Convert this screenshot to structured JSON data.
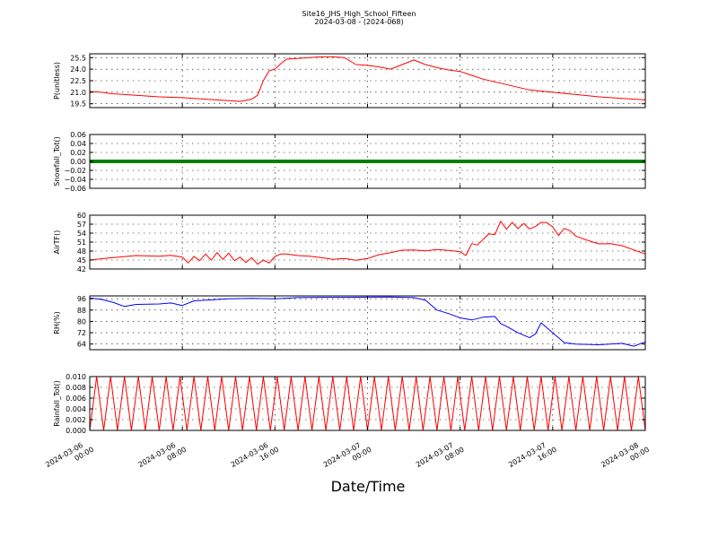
{
  "figure": {
    "title": "Site16_JHS_High_School_Fifteen",
    "subtitle": "2024-03-08 - (2024-068)",
    "xlabel": "Date/Time"
  },
  "chart_data": [
    {
      "type": "line",
      "ylabel": "P(unitless)",
      "yticks": [
        "19.5",
        "21.0",
        "22.5",
        "24.0",
        "25.5"
      ],
      "ylim": [
        19.0,
        26.0
      ],
      "grid": true,
      "colors": {
        "series": "#ff0000"
      },
      "x_hours": [
        0,
        1,
        2,
        4,
        6,
        8,
        10,
        12,
        13,
        14,
        14.5,
        15,
        15.5,
        16,
        16.5,
        17,
        18,
        19,
        20,
        21,
        22,
        23,
        24,
        25,
        26,
        27,
        28,
        29,
        30,
        31,
        32,
        33,
        34,
        36,
        38,
        40,
        42,
        44,
        46,
        48
      ],
      "series": [
        {
          "values": [
            21.1,
            21.0,
            20.8,
            20.6,
            20.4,
            20.3,
            20.1,
            19.9,
            19.8,
            20.1,
            20.6,
            22.5,
            23.8,
            24.0,
            24.7,
            25.3,
            25.4,
            25.5,
            25.6,
            25.6,
            25.5,
            24.6,
            24.5,
            24.3,
            24.0,
            24.6,
            25.2,
            24.6,
            24.2,
            23.9,
            23.7,
            23.2,
            22.7,
            22.0,
            21.3,
            21.0,
            20.7,
            20.4,
            20.2,
            20.0
          ]
        }
      ]
    },
    {
      "type": "line",
      "ylabel": "Snowfall_Tot()",
      "yticks": [
        "−0.06",
        "−0.04",
        "−0.02",
        "0.00",
        "0.02",
        "0.04",
        "0.06"
      ],
      "ylim": [
        -0.06,
        0.06
      ],
      "grid": true,
      "colors": {
        "series": "#008000"
      },
      "x_hours": [
        0,
        48
      ],
      "series": [
        {
          "values": [
            0.0,
            0.0
          ]
        }
      ]
    },
    {
      "type": "line",
      "ylabel": "AirTF()",
      "yticks": [
        "42",
        "45",
        "48",
        "51",
        "54",
        "57",
        "60"
      ],
      "ylim": [
        42,
        60
      ],
      "grid": true,
      "colors": {
        "series": "#ff0000"
      },
      "x_hours": [
        0,
        2,
        4,
        6,
        7,
        8,
        8.5,
        9,
        9.5,
        10,
        10.5,
        11,
        11.5,
        12,
        12.5,
        13,
        13.5,
        14,
        14.5,
        15,
        15.5,
        16,
        16.5,
        17,
        18,
        19,
        20,
        21,
        22,
        23,
        24,
        25,
        26,
        27,
        28,
        29,
        30,
        31,
        32,
        32.5,
        33,
        33.5,
        34,
        34.5,
        35,
        35.5,
        36,
        36.5,
        37,
        37.5,
        38,
        38.5,
        39,
        39.5,
        40,
        40.5,
        41,
        41.5,
        42,
        43,
        44,
        45,
        46,
        47,
        48
      ],
      "series": [
        {
          "values": [
            45.0,
            45.8,
            46.5,
            46.3,
            46.6,
            46.0,
            44.0,
            46.2,
            44.8,
            47.0,
            45.0,
            47.5,
            45.2,
            47.3,
            44.8,
            46.0,
            44.2,
            45.8,
            43.6,
            45.0,
            44.0,
            46.2,
            47.0,
            47.0,
            46.5,
            46.3,
            45.8,
            45.2,
            45.5,
            44.9,
            45.5,
            46.8,
            47.5,
            48.3,
            48.4,
            48.1,
            48.5,
            48.2,
            47.8,
            46.5,
            50.5,
            50.0,
            52.0,
            53.8,
            53.5,
            58.0,
            55.3,
            57.6,
            55.5,
            57.2,
            55.4,
            56.2,
            57.6,
            57.5,
            56.1,
            53.2,
            55.6,
            54.8,
            53.0,
            51.6,
            50.4,
            50.5,
            49.8,
            48.4,
            47.0
          ]
        }
      ]
    },
    {
      "type": "line",
      "ylabel": "RH(%)",
      "yticks": [
        "64",
        "72",
        "80",
        "88",
        "96"
      ],
      "ylim": [
        60,
        98
      ],
      "grid": true,
      "colors": {
        "series": "#0000ff"
      },
      "x_hours": [
        0,
        1,
        2,
        3,
        4,
        6,
        7,
        8,
        9,
        10,
        12,
        14,
        16,
        18,
        20,
        22,
        24,
        26,
        28,
        29,
        30,
        31,
        32,
        33,
        34,
        35,
        35.5,
        36,
        37,
        38,
        38.5,
        39,
        40,
        41,
        42,
        44,
        46,
        47,
        48
      ],
      "series": [
        {
          "values": [
            96.5,
            95.5,
            93.5,
            90.5,
            92.0,
            92.3,
            93.0,
            91.2,
            94.5,
            95.0,
            96.0,
            96.2,
            96.0,
            96.8,
            97.0,
            97.0,
            97.1,
            97.2,
            96.8,
            95.0,
            88.0,
            85.5,
            82.5,
            81.0,
            83.0,
            83.5,
            78.5,
            76.5,
            72.0,
            68.5,
            71.0,
            79.0,
            72.0,
            65.0,
            64.0,
            63.5,
            64.5,
            62.5,
            65.5
          ]
        }
      ]
    },
    {
      "type": "line",
      "ylabel": "Rainfall_Tot()",
      "yticks": [
        "0.000",
        "0.002",
        "0.004",
        "0.006",
        "0.008",
        "0.010"
      ],
      "ylim": [
        0.0,
        0.01
      ],
      "grid": true,
      "colors": {
        "series": "#ff0000"
      },
      "x_hours": [
        0.0,
        0.6,
        1.2,
        1.8,
        2.4,
        3.0,
        3.6,
        4.2,
        4.8,
        5.4,
        6.0,
        6.6,
        7.2,
        7.8,
        8.4,
        9.0,
        9.6,
        10.2,
        10.8,
        11.4,
        12.0,
        12.6,
        13.2,
        13.8,
        14.4,
        15.0,
        15.6,
        16.2,
        16.8,
        17.4,
        18.0,
        18.6,
        19.2,
        19.8,
        20.4,
        21.0,
        21.6,
        22.2,
        22.8,
        23.4,
        24.0,
        24.6,
        25.2,
        25.8,
        26.4,
        27.0,
        27.6,
        28.2,
        28.8,
        29.4,
        30.0,
        30.6,
        31.2,
        31.8,
        32.4,
        33.0,
        33.6,
        34.2,
        34.8,
        35.4,
        36.0,
        36.6,
        37.2,
        37.8,
        38.4,
        39.0,
        39.6,
        40.2,
        40.8,
        41.4,
        42.0,
        42.6,
        43.2,
        43.8,
        44.4,
        45.0,
        45.6,
        46.2,
        46.8,
        47.4,
        48.0
      ],
      "series": [
        {
          "values": [
            0.0,
            0.01,
            0.0,
            0.01,
            0.0,
            0.01,
            0.0,
            0.01,
            0.0,
            0.01,
            0.0,
            0.01,
            0.0,
            0.01,
            0.0,
            0.01,
            0.0,
            0.01,
            0.0,
            0.01,
            0.0,
            0.01,
            0.0,
            0.01,
            0.0,
            0.01,
            0.0,
            0.01,
            0.0,
            0.01,
            0.0,
            0.01,
            0.0,
            0.01,
            0.0,
            0.01,
            0.0,
            0.01,
            0.0,
            0.01,
            0.0,
            0.01,
            0.0,
            0.01,
            0.0,
            0.01,
            0.0,
            0.01,
            0.0,
            0.01,
            0.0,
            0.01,
            0.0,
            0.01,
            0.0,
            0.01,
            0.0,
            0.01,
            0.0,
            0.01,
            0.0,
            0.01,
            0.0,
            0.01,
            0.0,
            0.01,
            0.0,
            0.01,
            0.0,
            0.01,
            0.0,
            0.01,
            0.0,
            0.01,
            0.0,
            0.01,
            0.0,
            0.01,
            0.0,
            0.01,
            0.0
          ]
        }
      ]
    }
  ],
  "x_axis": {
    "range_hours": [
      0,
      48
    ],
    "tick_hours": [
      0,
      8,
      16,
      24,
      32,
      40,
      48
    ],
    "tick_dates": [
      "2024-03-06",
      "2024-03-06",
      "2024-03-06",
      "2024-03-07",
      "2024-03-07",
      "2024-03-07",
      "2024-03-08"
    ],
    "tick_times": [
      "00:00",
      "08:00",
      "16:00",
      "00:00",
      "08:00",
      "16:00",
      "00:00"
    ]
  }
}
